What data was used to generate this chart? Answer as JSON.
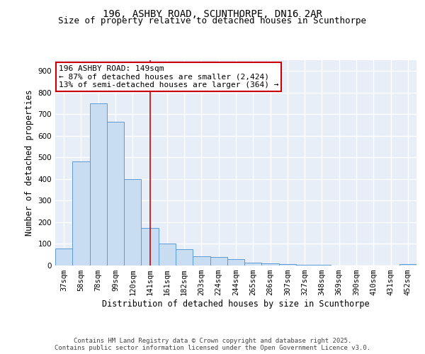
{
  "title1": "196, ASHBY ROAD, SCUNTHORPE, DN16 2AR",
  "title2": "Size of property relative to detached houses in Scunthorpe",
  "xlabel": "Distribution of detached houses by size in Scunthorpe",
  "ylabel": "Number of detached properties",
  "categories": [
    "37sqm",
    "58sqm",
    "78sqm",
    "99sqm",
    "120sqm",
    "141sqm",
    "161sqm",
    "182sqm",
    "203sqm",
    "224sqm",
    "244sqm",
    "265sqm",
    "286sqm",
    "307sqm",
    "327sqm",
    "348sqm",
    "369sqm",
    "390sqm",
    "410sqm",
    "431sqm",
    "452sqm"
  ],
  "values": [
    78,
    480,
    750,
    665,
    400,
    175,
    103,
    75,
    42,
    38,
    28,
    12,
    10,
    7,
    4,
    2,
    1,
    1,
    1,
    1,
    5
  ],
  "bar_color": "#c9ddf2",
  "bar_edge_color": "#5b9bd5",
  "highlight_bar_index": 5,
  "vline_color": "#cc0000",
  "annotation_text": "196 ASHBY ROAD: 149sqm\n← 87% of detached houses are smaller (2,424)\n13% of semi-detached houses are larger (364) →",
  "annotation_box_color": "#ffffff",
  "annotation_box_edge_color": "#cc0000",
  "ylim": [
    0,
    950
  ],
  "yticks": [
    0,
    100,
    200,
    300,
    400,
    500,
    600,
    700,
    800,
    900
  ],
  "background_color": "#e8eef7",
  "grid_color": "#ffffff",
  "footer1": "Contains HM Land Registry data © Crown copyright and database right 2025.",
  "footer2": "Contains public sector information licensed under the Open Government Licence v3.0.",
  "title_fontsize": 10,
  "subtitle_fontsize": 9,
  "axis_label_fontsize": 8.5,
  "tick_fontsize": 7.5,
  "footer_fontsize": 6.5,
  "annotation_fontsize": 8
}
